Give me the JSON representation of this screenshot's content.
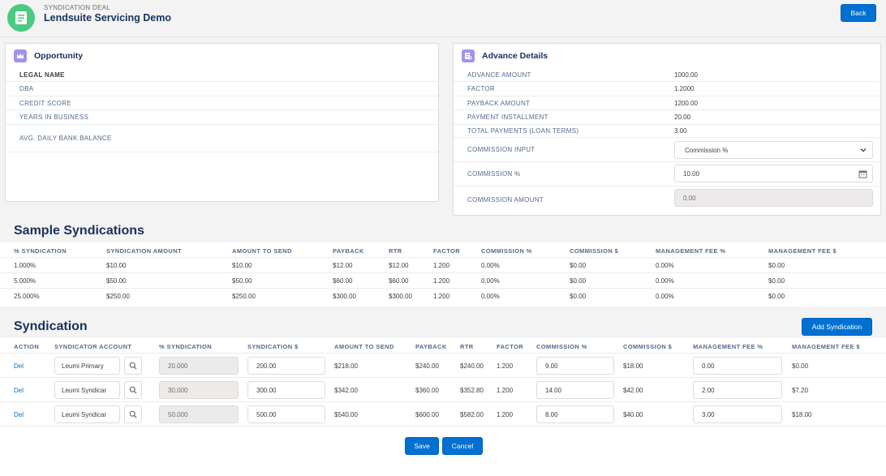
{
  "header": {
    "subtitle": "SYNDICATION DEAL",
    "title": "Lendsuite Servicing Demo",
    "back_label": "Back"
  },
  "opportunity": {
    "title": "Opportunity",
    "fields": {
      "legal_name": "LEGAL NAME",
      "dba": "DBA",
      "credit_score": "CREDIT SCORE",
      "years_in_business": "YEARS IN BUSINESS",
      "avg_daily_bank_balance": "AVG. DAILY BANK BALANCE"
    }
  },
  "advance": {
    "title": "Advance Details",
    "rows": [
      {
        "label": "ADVANCE AMOUNT",
        "value": "1000.00"
      },
      {
        "label": "FACTOR",
        "value": "1.2000"
      },
      {
        "label": "PAYBACK AMOUNT",
        "value": "1200.00"
      },
      {
        "label": "PAYMENT INSTALLMENT",
        "value": "20.00"
      },
      {
        "label": "TOTAL PAYMENTS (LOAN TERMS)",
        "value": "3.00"
      }
    ],
    "commission_input_label": "COMMISSION INPUT",
    "commission_input_value": "Commission %",
    "commission_pct_label": "COMMISSION %",
    "commission_pct_value": "10.00",
    "commission_amount_label": "COMMISSION AMOUNT",
    "commission_amount_value": "0.00"
  },
  "sample": {
    "title": "Sample Syndications",
    "headers": [
      "% SYNDICATION",
      "SYNDICATION AMOUNT",
      "AMOUNT TO SEND",
      "PAYBACK",
      "RTR",
      "FACTOR",
      "COMMISSION %",
      "COMMISSION $",
      "MANAGEMENT FEE %",
      "MANAGEMENT FEE $"
    ],
    "rows": [
      [
        "1.000%",
        "$10.00",
        "$10.00",
        "$12.00",
        "$12.00",
        "1.200",
        "0.00%",
        "$0.00",
        "0.00%",
        "$0.00"
      ],
      [
        "5.000%",
        "$50.00",
        "$50.00",
        "$60.00",
        "$60.00",
        "1.200",
        "0.00%",
        "$0.00",
        "0.00%",
        "$0.00"
      ],
      [
        "25.000%",
        "$250.00",
        "$250.00",
        "$300.00",
        "$300.00",
        "1.200",
        "0.00%",
        "$0.00",
        "0.00%",
        "$0.00"
      ]
    ]
  },
  "syndication": {
    "title": "Syndication",
    "add_label": "Add Syndication",
    "headers": [
      "ACTION",
      "SYNDICATOR ACCOUNT",
      "% SYNDICATION",
      "SYNDICATION $",
      "AMOUNT TO SEND",
      "PAYBACK",
      "RTR",
      "FACTOR",
      "COMMISSION %",
      "COMMISSION $",
      "MANAGEMENT FEE %",
      "MANAGEMENT FEE $"
    ],
    "rows": [
      {
        "action": "Del",
        "account": "Leumi Primary",
        "pct": "20.000",
        "amount": "200.00",
        "send": "$218.00",
        "payback": "$240.00",
        "rtr": "$240.00",
        "factor": "1.200",
        "comm_pct": "9.00",
        "comm_amt": "$18.00",
        "mgmt_pct": "0.00",
        "mgmt_amt": "$0.00"
      },
      {
        "action": "Del",
        "account": "Leumi Syndicar",
        "pct": "30.000",
        "amount": "300.00",
        "send": "$342.00",
        "payback": "$360.00",
        "rtr": "$352.80",
        "factor": "1.200",
        "comm_pct": "14.00",
        "comm_amt": "$42.00",
        "mgmt_pct": "2.00",
        "mgmt_amt": "$7.20"
      },
      {
        "action": "Del",
        "account": "Leumi Syndicar",
        "pct": "50.000",
        "amount": "500.00",
        "send": "$540.00",
        "payback": "$600.00",
        "rtr": "$582.00",
        "factor": "1.200",
        "comm_pct": "8.00",
        "comm_amt": "$40.00",
        "mgmt_pct": "3.00",
        "mgmt_amt": "$18.00"
      }
    ],
    "save_label": "Save",
    "cancel_label": "Cancel"
  },
  "icons": {
    "app": "document-list-icon",
    "opportunity": "crown-icon",
    "advance": "report-icon",
    "lookup": "search-icon",
    "select": "chevron-down-icon",
    "calendar": "calendar-icon"
  },
  "colors": {
    "brand": "#0070d2",
    "app_icon": "#4bca81",
    "card_icon": "#a094ed",
    "title": "#16325c"
  }
}
